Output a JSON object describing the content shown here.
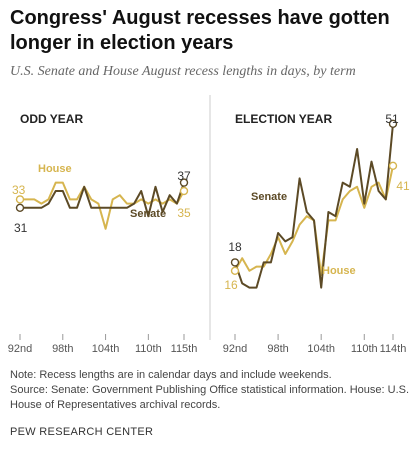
{
  "title": "Congress' August recesses have gotten longer in election years",
  "subtitle": "U.S. Senate and House August recess lengths in days, by term",
  "notes": [
    "Note: Recess lengths are in calendar days and include weekends.",
    "Source: Senate: Government Publishing Office statistical information. House: U.S. House of Representatives archival records."
  ],
  "brand": "PEW RESEARCH CENTER",
  "colors": {
    "senate": "#5c4a26",
    "house": "#d6b54f",
    "axis": "#999999",
    "divider": "#cccccc"
  },
  "chart_data": [
    {
      "type": "line",
      "panel_title": "ODD YEAR",
      "x": [
        "92nd",
        "93rd",
        "94th",
        "95th",
        "96th",
        "97th",
        "98th",
        "99th",
        "100th",
        "101st",
        "102nd",
        "103rd",
        "104th",
        "105th",
        "106th",
        "107th",
        "108th",
        "109th",
        "110th",
        "111th",
        "112th",
        "113th",
        "114th",
        "115th"
      ],
      "tick_labels": [
        "92nd",
        "98th",
        "104th",
        "110th",
        "115th"
      ],
      "ylim": [
        0,
        60
      ],
      "series": [
        {
          "name": "House",
          "values": [
            33,
            33,
            33,
            32,
            33,
            37,
            37,
            33,
            33,
            36,
            33,
            32,
            26,
            33,
            34,
            32,
            32,
            33,
            32,
            33,
            32,
            33,
            32,
            35
          ]
        },
        {
          "name": "Senate",
          "values": [
            31,
            31,
            31,
            31,
            32,
            35,
            35,
            31,
            31,
            36,
            31,
            31,
            31,
            31,
            31,
            31,
            32,
            35,
            29,
            36,
            30,
            34,
            32,
            37
          ]
        }
      ],
      "start_labels": [
        {
          "series": "House",
          "text": "33"
        },
        {
          "series": "Senate",
          "text": "31"
        }
      ],
      "end_labels": [
        {
          "series": "Senate",
          "text": "37"
        },
        {
          "series": "House",
          "text": "35"
        }
      ],
      "series_labels": [
        {
          "series": "House",
          "text": "House"
        },
        {
          "series": "Senate",
          "text": "Senate"
        }
      ]
    },
    {
      "type": "line",
      "panel_title": "ELECTION YEAR",
      "x": [
        "92nd",
        "93rd",
        "94th",
        "95th",
        "96th",
        "97th",
        "98th",
        "99th",
        "100th",
        "101st",
        "102nd",
        "103rd",
        "104th",
        "105th",
        "106th",
        "107th",
        "108th",
        "109th",
        "110th",
        "111th",
        "112th",
        "113th",
        "114th"
      ],
      "tick_labels": [
        "92nd",
        "98th",
        "104th",
        "110th",
        "114th"
      ],
      "ylim": [
        0,
        60
      ],
      "series": [
        {
          "name": "House",
          "values": [
            16,
            19,
            16,
            17,
            17,
            20,
            24,
            20,
            23,
            27,
            29,
            28,
            15,
            28,
            28,
            33,
            35,
            36,
            31,
            36,
            37,
            33,
            41
          ]
        },
        {
          "name": "Senate",
          "values": [
            18,
            13,
            12,
            12,
            18,
            18,
            25,
            23,
            24,
            38,
            30,
            28,
            12,
            30,
            29,
            37,
            36,
            45,
            32,
            42,
            35,
            33,
            51
          ]
        }
      ],
      "start_labels": [
        {
          "series": "Senate",
          "text": "18"
        },
        {
          "series": "House",
          "text": "16"
        }
      ],
      "end_labels": [
        {
          "series": "Senate",
          "text": "51"
        },
        {
          "series": "House",
          "text": "41"
        }
      ],
      "series_labels": [
        {
          "series": "Senate",
          "text": "Senate"
        },
        {
          "series": "House",
          "text": "House"
        }
      ]
    }
  ]
}
